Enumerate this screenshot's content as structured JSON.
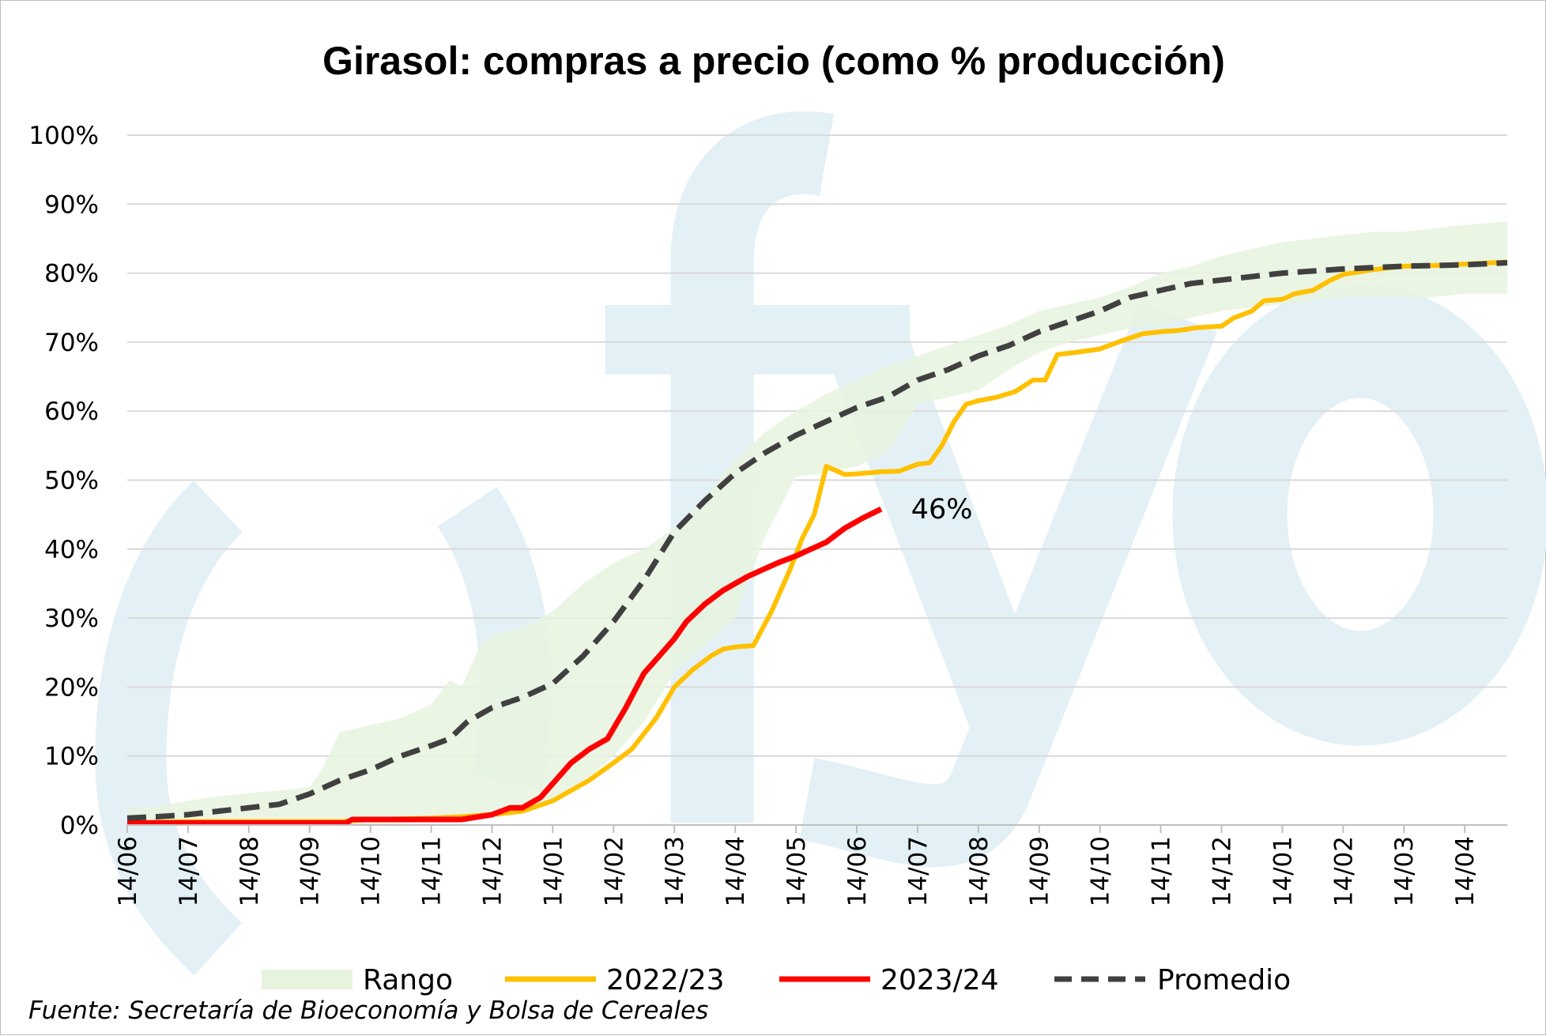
{
  "chart_data": {
    "type": "line",
    "title": "Girasol: compras a precio (como % producción)",
    "y_ticks": [
      "0%",
      "10%",
      "20%",
      "30%",
      "40%",
      "50%",
      "60%",
      "70%",
      "80%",
      "90%",
      "100%"
    ],
    "ylim": [
      0,
      100
    ],
    "x_ticks": [
      "14/06",
      "14/07",
      "14/08",
      "14/09",
      "14/10",
      "14/11",
      "14/12",
      "14/01",
      "14/02",
      "14/03",
      "14/04",
      "14/05",
      "14/06",
      "14/07",
      "14/08",
      "14/09",
      "14/10",
      "14/11",
      "14/12",
      "14/01",
      "14/02",
      "14/03",
      "14/04"
    ],
    "xlim": [
      0,
      22.7
    ],
    "grid": true,
    "legend_position": "bottom",
    "legend": [
      "Rango",
      "2022/23",
      "2023/24",
      "Promedio"
    ],
    "colors": {
      "rango": "#e8f3df",
      "s2223": "#ffc000",
      "s2324": "#ff0000",
      "promedio": "#404040",
      "grid": "#d9d9d9",
      "watermark": "#e3f0f5"
    },
    "annotation": {
      "text": "46%",
      "x": 12.4,
      "y": 45.8
    },
    "source": "Fuente: Secretaría de Bioeconomía y Bolsa de Cereales",
    "watermark": "fyo",
    "series": [
      {
        "name": "Rango",
        "type": "area",
        "x": [
          0,
          0.5,
          1,
          1.5,
          2,
          2.5,
          3,
          3.2,
          3.5,
          4,
          4.5,
          5,
          5.3,
          5.5,
          5.8,
          6,
          6.5,
          7,
          7.5,
          8,
          8.5,
          9,
          9.5,
          10,
          10.5,
          11,
          11.5,
          12,
          12.5,
          13,
          13.5,
          14,
          14.5,
          15,
          15.5,
          16,
          16.5,
          17,
          17.5,
          18,
          18.5,
          19,
          19.5,
          20,
          20.5,
          21,
          21.5,
          22,
          22.7
        ],
        "upper": [
          2.5,
          2.7,
          3.5,
          4.2,
          4.6,
          5,
          5.5,
          8,
          13.5,
          14.5,
          15.5,
          17.5,
          21,
          20,
          26,
          27.5,
          28.5,
          31,
          35,
          38,
          40,
          43,
          47.5,
          53,
          57,
          60,
          62.5,
          64.5,
          66.5,
          68,
          69.5,
          71,
          72.5,
          74.5,
          75.5,
          76.5,
          78,
          80,
          81,
          82.5,
          83.5,
          84.5,
          85,
          85.5,
          86,
          86,
          86.5,
          87,
          87.5
        ],
        "lower": [
          0,
          0,
          0,
          0,
          0,
          0,
          0,
          0,
          0,
          0,
          0.2,
          0.5,
          0.8,
          1,
          1.2,
          1.5,
          2,
          3.5,
          6,
          10,
          15,
          22,
          26,
          30,
          42,
          50.5,
          51,
          52,
          54,
          61,
          62,
          63,
          66,
          68.5,
          70,
          71,
          72,
          72.5,
          73.5,
          74.5,
          75,
          75.5,
          76,
          76.5,
          76.5,
          76.5,
          76.5,
          77,
          77
        ]
      },
      {
        "name": "2022/23",
        "x": [
          0,
          1,
          2,
          3,
          3.5,
          4,
          5,
          5.5,
          6,
          6.5,
          7,
          7.3,
          7.6,
          8,
          8.3,
          8.7,
          9,
          9.3,
          9.6,
          9.8,
          10,
          10.3,
          10.6,
          10.9,
          11.1,
          11.3,
          11.5,
          11.8,
          12,
          12.4,
          12.7,
          13,
          13.2,
          13.4,
          13.6,
          13.8,
          14,
          14.3,
          14.6,
          14.9,
          15.1,
          15.3,
          15.6,
          16,
          16.3,
          16.7,
          17,
          17.3,
          17.6,
          18,
          18.2,
          18.5,
          18.7,
          19,
          19.2,
          19.5,
          19.8,
          20,
          20.5,
          21,
          21.5,
          22,
          22.7
        ],
        "y": [
          0.3,
          0.5,
          0.5,
          0.5,
          0.5,
          0.8,
          1,
          1.2,
          1.5,
          2,
          3.5,
          5,
          6.5,
          9,
          11,
          15.5,
          20,
          22.5,
          24.5,
          25.5,
          25.8,
          26,
          31,
          37,
          41.5,
          45,
          52,
          50.8,
          50.9,
          51.2,
          51.3,
          52.3,
          52.5,
          55,
          58.5,
          61,
          61.5,
          62,
          62.8,
          64.5,
          64.5,
          68.2,
          68.5,
          69,
          70,
          71.2,
          71.5,
          71.7,
          72.1,
          72.3,
          73.5,
          74.5,
          76,
          76.2,
          77,
          77.5,
          79,
          79.8,
          80.5,
          81,
          81.1,
          81.3,
          81.6
        ]
      },
      {
        "name": "2023/24",
        "x": [
          0,
          1,
          2,
          3,
          3.6,
          3.7,
          4,
          5,
          5.5,
          6,
          6.3,
          6.5,
          6.8,
          7,
          7.3,
          7.6,
          7.9,
          8.2,
          8.5,
          8.8,
          9,
          9.2,
          9.5,
          9.8,
          10.2,
          10.7,
          11,
          11.5,
          11.8,
          12.1,
          12.4
        ],
        "y": [
          0.3,
          0.3,
          0.3,
          0.3,
          0.3,
          0.8,
          0.8,
          0.8,
          0.8,
          1.5,
          2.5,
          2.5,
          4,
          6,
          9,
          11,
          12.5,
          17,
          22,
          25,
          27,
          29.5,
          32,
          34,
          36,
          38,
          39,
          41,
          43,
          44.5,
          45.8
        ]
      },
      {
        "name": "Promedio",
        "x": [
          0,
          0.5,
          1,
          1.5,
          2,
          2.5,
          3,
          3.5,
          4,
          4.5,
          5,
          5.3,
          5.6,
          6,
          6.5,
          7,
          7.5,
          8,
          8.5,
          9,
          9.5,
          10,
          10.5,
          11,
          11.5,
          12,
          12.5,
          13,
          13.5,
          14,
          14.5,
          15,
          15.5,
          16,
          16.5,
          17,
          17.5,
          18,
          18.5,
          19,
          19.5,
          20,
          20.5,
          21,
          21.5,
          22,
          22.7
        ],
        "y": [
          1,
          1.2,
          1.5,
          2,
          2.5,
          3,
          4.5,
          6.5,
          8,
          10,
          11.5,
          12.5,
          15,
          17,
          18.5,
          20.5,
          24.5,
          29.5,
          35.5,
          42.5,
          47,
          51,
          54,
          56.5,
          58.5,
          60.5,
          62,
          64.5,
          66,
          68,
          69.5,
          71.5,
          73,
          74.5,
          76.5,
          77.5,
          78.5,
          79,
          79.5,
          80,
          80.3,
          80.6,
          80.8,
          81,
          81.1,
          81.2,
          81.5
        ]
      }
    ]
  }
}
